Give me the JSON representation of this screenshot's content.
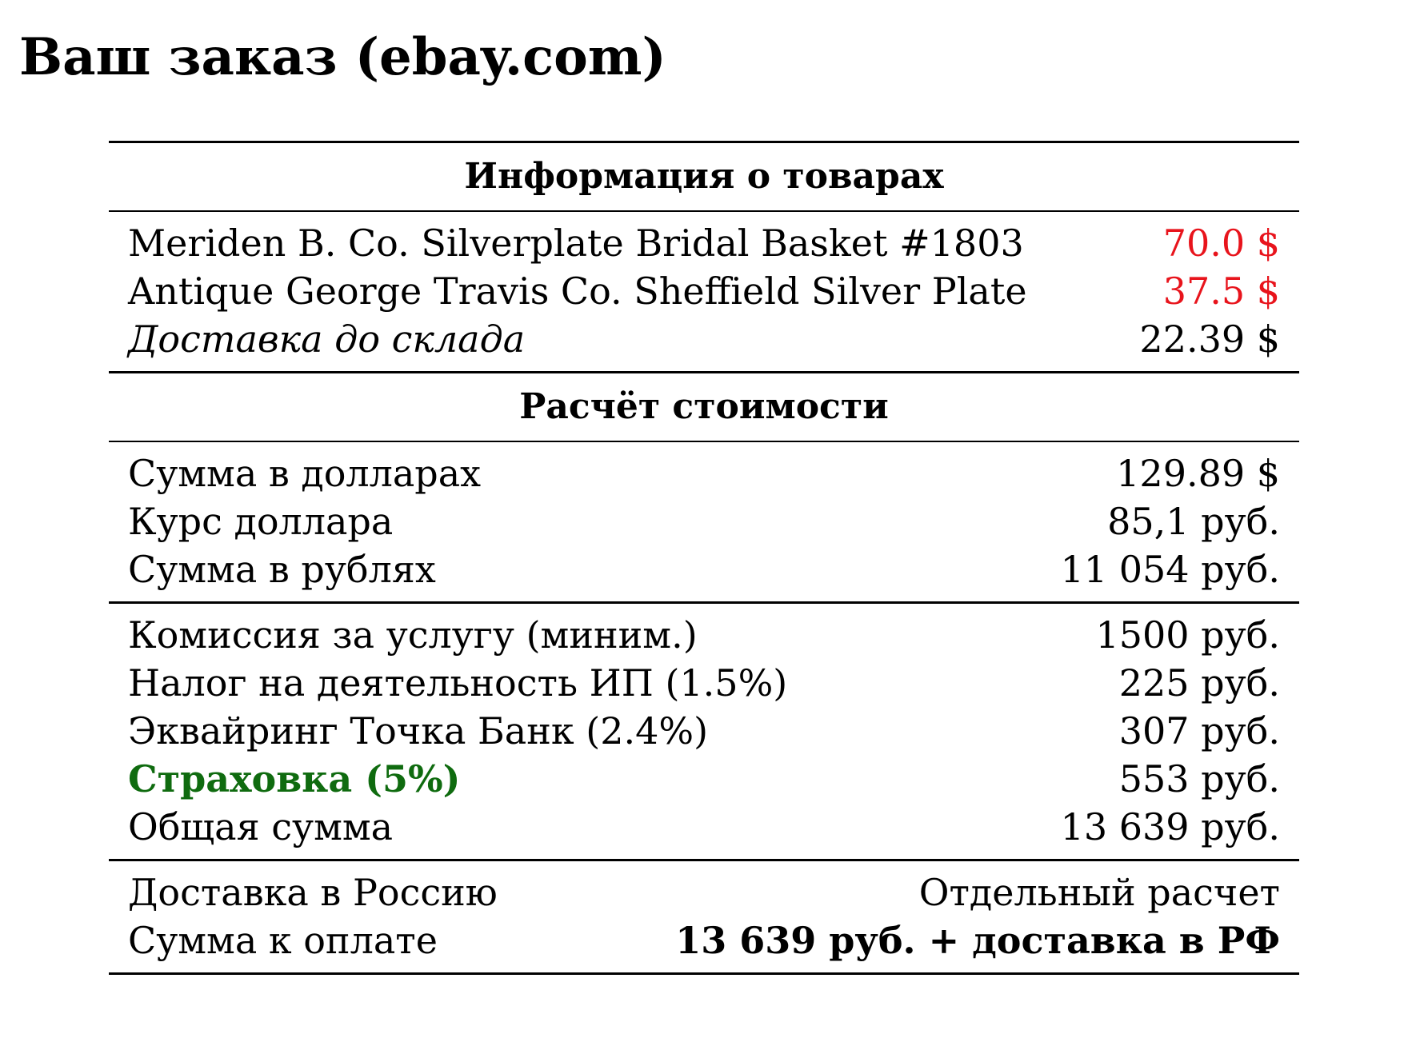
{
  "title": "Ваш заказ (ebay.com)",
  "colors": {
    "price_highlight": "#e8141c",
    "insurance_label": "#0f6b0f"
  },
  "products": {
    "header": "Информация о товарах",
    "items": [
      {
        "name": "Meriden B. Co. Silverplate Bridal Basket #1803",
        "price": "70.0 $"
      },
      {
        "name": "Antique George Travis Co. Sheffield Silver Plate",
        "price": "37.5 $"
      }
    ],
    "warehouse_shipping": {
      "label": "Доставка до склада",
      "value": "22.39 $"
    }
  },
  "calculation": {
    "header": "Расчёт стоимости",
    "conversion": [
      {
        "label": "Сумма в долларах",
        "value": "129.89 $"
      },
      {
        "label": "Курс доллара",
        "value": "85,1 руб."
      },
      {
        "label": "Сумма в рублях",
        "value": "11 054 руб."
      }
    ],
    "fees": [
      {
        "label": "Комиссия за услугу (миним.)",
        "value": "1500 руб."
      },
      {
        "label": "Налог на деятельность ИП (1.5%)",
        "value": "225 руб."
      },
      {
        "label": "Эквайринг Точка Банк (2.4%)",
        "value": "307 руб."
      },
      {
        "label": "Страховка (5%)",
        "value": "553 руб."
      },
      {
        "label": "Общая сумма",
        "value": "13 639 руб."
      }
    ],
    "final": [
      {
        "label": "Доставка в Россию",
        "value": "Отдельный расчет"
      },
      {
        "label": "Сумма к оплате",
        "value": "13 639 руб. + доставка в РФ"
      }
    ]
  }
}
